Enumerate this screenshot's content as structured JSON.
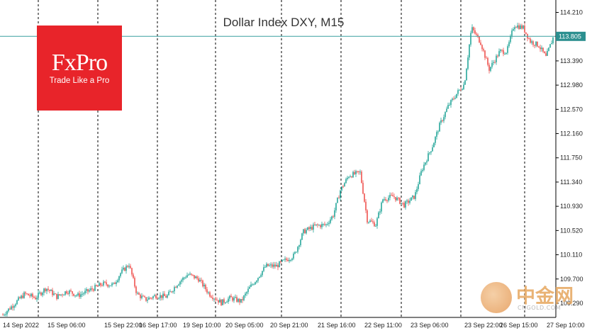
{
  "chart_data": {
    "type": "candlestick",
    "title": "Dollar Index DXY, M15",
    "x_labels": [
      "14 Sep 2022",
      "15 Sep 06:00",
      "15 Sep 22:00",
      "16 Sep 17:00",
      "19 Sep 10:00",
      "20 Sep 05:00",
      "20 Sep 21:00",
      "21 Sep 16:00",
      "22 Sep 11:00",
      "23 Sep 06:00",
      "23 Sep 22:00",
      "26 Sep 15:00",
      "27 Sep 10:00"
    ],
    "y_ticks": [
      114.21,
      113.805,
      113.39,
      112.98,
      112.57,
      112.16,
      111.75,
      111.34,
      110.93,
      110.52,
      110.11,
      109.7,
      109.29
    ],
    "ylim": [
      109.05,
      114.42
    ],
    "current_price": 113.805,
    "grid": "vertical dashed separators",
    "series": [
      {
        "anchors": [
          {
            "x": 0,
            "price": 109.05
          },
          {
            "x": 15,
            "price": 109.22
          },
          {
            "x": 35,
            "price": 109.45
          },
          {
            "x": 50,
            "price": 109.38
          },
          {
            "x": 65,
            "price": 109.55
          },
          {
            "x": 80,
            "price": 109.4
          },
          {
            "x": 95,
            "price": 109.5
          },
          {
            "x": 110,
            "price": 109.42
          },
          {
            "x": 125,
            "price": 109.5
          },
          {
            "x": 145,
            "price": 109.62
          },
          {
            "x": 160,
            "price": 109.6
          },
          {
            "x": 170,
            "price": 109.8
          },
          {
            "x": 182,
            "price": 109.95
          },
          {
            "x": 193,
            "price": 109.45
          },
          {
            "x": 205,
            "price": 109.35
          },
          {
            "x": 220,
            "price": 109.42
          },
          {
            "x": 235,
            "price": 109.4
          },
          {
            "x": 250,
            "price": 109.62
          },
          {
            "x": 265,
            "price": 109.78
          },
          {
            "x": 280,
            "price": 109.7
          },
          {
            "x": 295,
            "price": 109.45
          },
          {
            "x": 312,
            "price": 109.3
          },
          {
            "x": 325,
            "price": 109.38
          },
          {
            "x": 340,
            "price": 109.32
          },
          {
            "x": 352,
            "price": 109.55
          },
          {
            "x": 362,
            "price": 109.7
          },
          {
            "x": 375,
            "price": 109.92
          },
          {
            "x": 390,
            "price": 109.92
          },
          {
            "x": 400,
            "price": 110.0
          },
          {
            "x": 415,
            "price": 110.1
          },
          {
            "x": 428,
            "price": 110.5
          },
          {
            "x": 445,
            "price": 110.6
          },
          {
            "x": 460,
            "price": 110.62
          },
          {
            "x": 470,
            "price": 110.78
          },
          {
            "x": 480,
            "price": 111.2
          },
          {
            "x": 492,
            "price": 111.45
          },
          {
            "x": 508,
            "price": 111.5
          },
          {
            "x": 518,
            "price": 110.7
          },
          {
            "x": 530,
            "price": 110.62
          },
          {
            "x": 540,
            "price": 111.05
          },
          {
            "x": 555,
            "price": 111.1
          },
          {
            "x": 570,
            "price": 110.95
          },
          {
            "x": 585,
            "price": 111.1
          },
          {
            "x": 595,
            "price": 111.55
          },
          {
            "x": 610,
            "price": 111.95
          },
          {
            "x": 620,
            "price": 112.3
          },
          {
            "x": 632,
            "price": 112.62
          },
          {
            "x": 645,
            "price": 112.85
          },
          {
            "x": 655,
            "price": 113.0
          },
          {
            "x": 665,
            "price": 113.95
          },
          {
            "x": 678,
            "price": 113.7
          },
          {
            "x": 690,
            "price": 113.25
          },
          {
            "x": 705,
            "price": 113.55
          },
          {
            "x": 715,
            "price": 113.55
          },
          {
            "x": 725,
            "price": 114.0
          },
          {
            "x": 738,
            "price": 113.95
          },
          {
            "x": 748,
            "price": 113.72
          },
          {
            "x": 760,
            "price": 113.65
          },
          {
            "x": 770,
            "price": 113.45
          },
          {
            "x": 780,
            "price": 113.78
          }
        ]
      }
    ]
  },
  "brand": {
    "name": "FxPro",
    "tagline": "Trade Like a Pro"
  },
  "watermark": {
    "text": "中金网",
    "sub": "CNGOLD.COM"
  },
  "colors": {
    "bull": "#26a69a",
    "bear": "#ef5350",
    "price_line": "#3aa0a0",
    "grid": "#000000",
    "price_box": "#2b8f8f",
    "brand": "#e8242a"
  }
}
